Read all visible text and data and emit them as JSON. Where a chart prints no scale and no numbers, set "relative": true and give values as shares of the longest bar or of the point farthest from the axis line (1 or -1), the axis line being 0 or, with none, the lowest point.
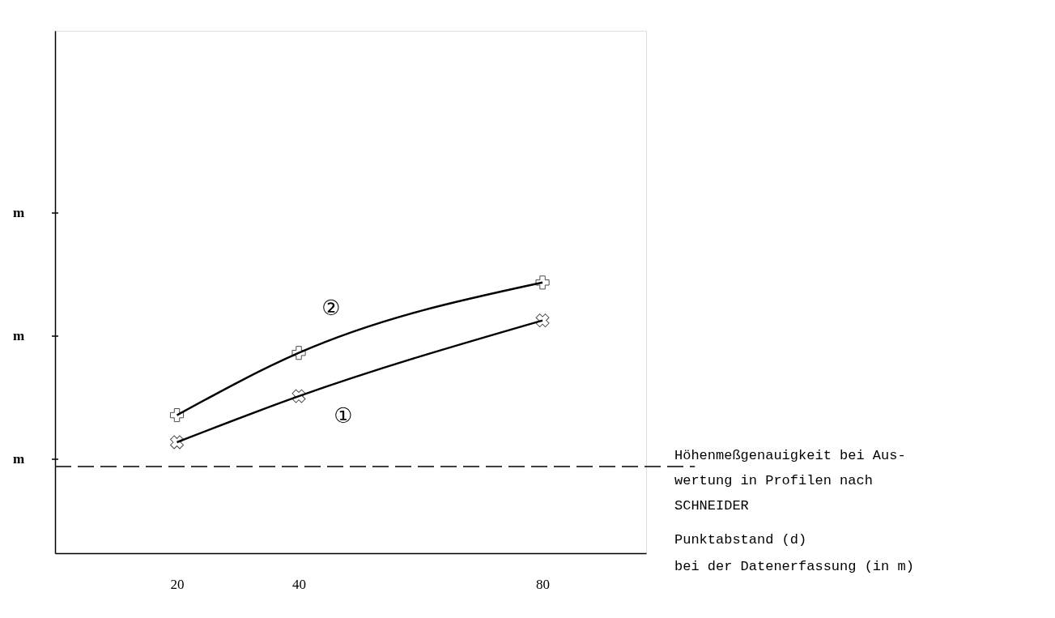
{
  "chart_data": {
    "type": "line",
    "relative": true,
    "marker": "cross",
    "xlabel": "Punktabstand (d)\nbei der Datenerfassung (in m)",
    "x": [
      20,
      40,
      80
    ],
    "xlim": [
      0,
      97
    ],
    "xticks": [
      20,
      40,
      80
    ],
    "series": [
      {
        "name": "①",
        "color": "#000000",
        "values": [
          0.41,
          0.58,
          0.86
        ]
      },
      {
        "name": "②",
        "color": "#000000",
        "values": [
          0.51,
          0.74,
          1
        ]
      }
    ],
    "ref_lines": [
      {
        "axis": "y",
        "value": 0.32,
        "label": "Höhenmeßgenauigkeit bei Aus-\nwertung in Profilen nach\nSCHNEIDER",
        "color": "#000000",
        "line_style": "dashed"
      }
    ],
    "annotations": [
      "m",
      "m",
      "m"
    ],
    "grid": false,
    "legend": false
  }
}
